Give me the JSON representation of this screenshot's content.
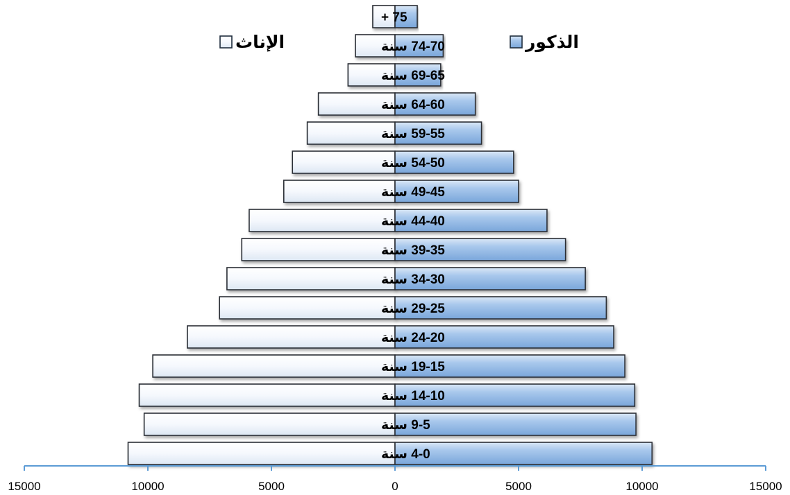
{
  "chart_data": {
    "type": "bar",
    "orientation": "horizontal",
    "subtype": "population-pyramid",
    "categories": [
      "4-0 سنة",
      "9-5 سنة",
      "14-10 سنة",
      "19-15 سنة",
      "24-20 سنة",
      "29-25 سنة",
      "34-30 سنة",
      "39-35 سنة",
      "44-40 سنة",
      "49-45 سنة",
      "54-50 سنة",
      "59-55 سنة",
      "64-60 سنة",
      "69-65 سنة",
      "74-70 سنة",
      "75 +"
    ],
    "series": [
      {
        "name": "الذكور",
        "side": "right",
        "color": "#8db4e2",
        "values": [
          10400,
          9750,
          9700,
          9300,
          8850,
          8550,
          7700,
          6900,
          6150,
          5000,
          4800,
          3500,
          3250,
          1850,
          1950,
          900
        ]
      },
      {
        "name": "الإناث",
        "side": "left",
        "color": "#f2f6fc",
        "values": [
          10800,
          10150,
          10350,
          9800,
          8400,
          7100,
          6800,
          6200,
          5900,
          4500,
          4150,
          3550,
          3100,
          1900,
          1600,
          900
        ]
      }
    ],
    "xlim": [
      -15000,
      15000
    ],
    "xticks": [
      -15000,
      -10000,
      -5000,
      0,
      5000,
      10000,
      15000
    ],
    "xtick_labels": [
      "15000",
      "10000",
      "5000",
      "0",
      "5000",
      "10000",
      "15000"
    ],
    "legend_position": "top",
    "grid": false,
    "axis_color": "#5b9bd5"
  }
}
